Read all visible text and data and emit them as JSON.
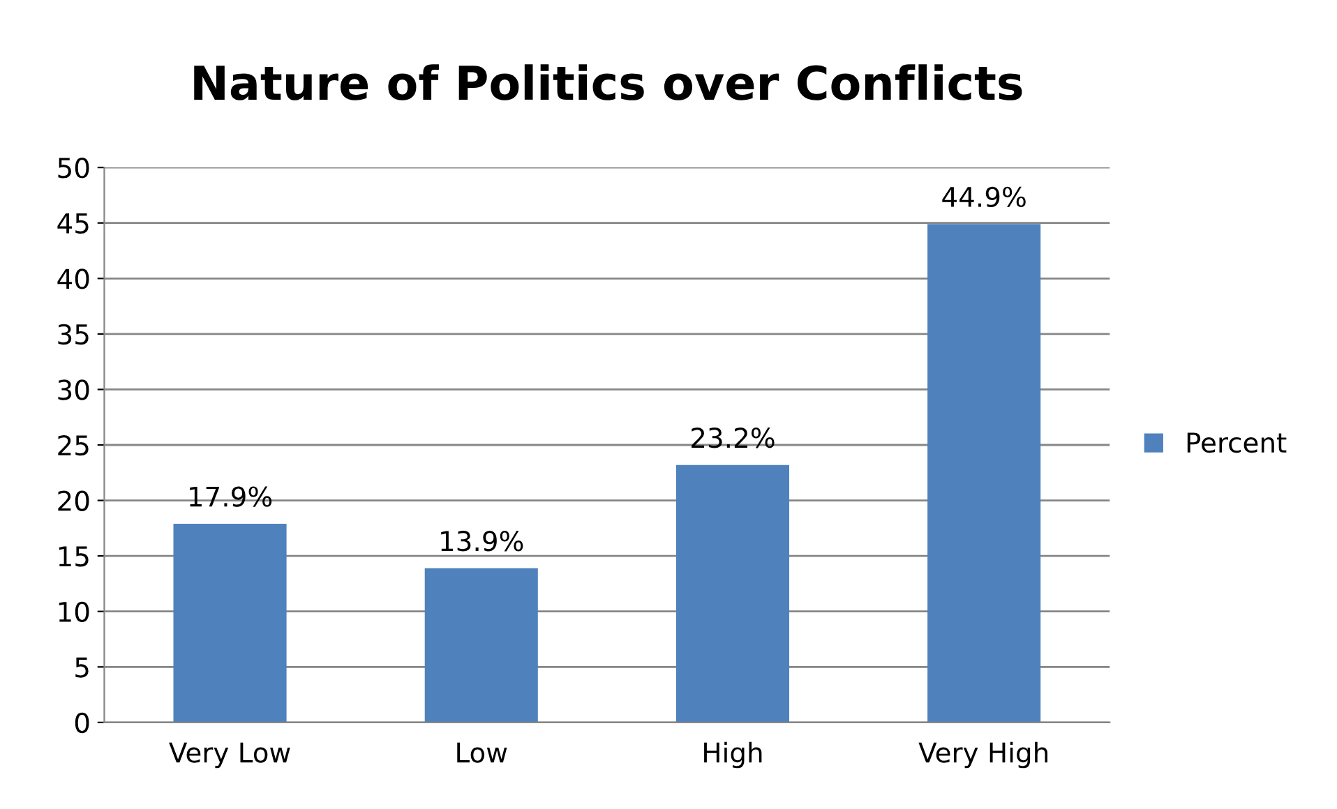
{
  "chart_data": {
    "type": "bar",
    "title": "Nature of Politics over Conflicts",
    "categories": [
      "Very Low",
      "Low",
      "High",
      "Very High"
    ],
    "series": [
      {
        "name": "Percent",
        "color": "#4f81bd",
        "values": [
          17.9,
          13.9,
          23.2,
          44.9
        ],
        "value_labels": [
          "17.9%",
          "13.9%",
          "23.2%",
          "44.9%"
        ]
      }
    ],
    "ylim": [
      0,
      50
    ],
    "yticks": [
      0,
      5,
      10,
      15,
      20,
      25,
      30,
      35,
      40,
      45,
      50
    ],
    "grid": "y",
    "legend": "right"
  }
}
